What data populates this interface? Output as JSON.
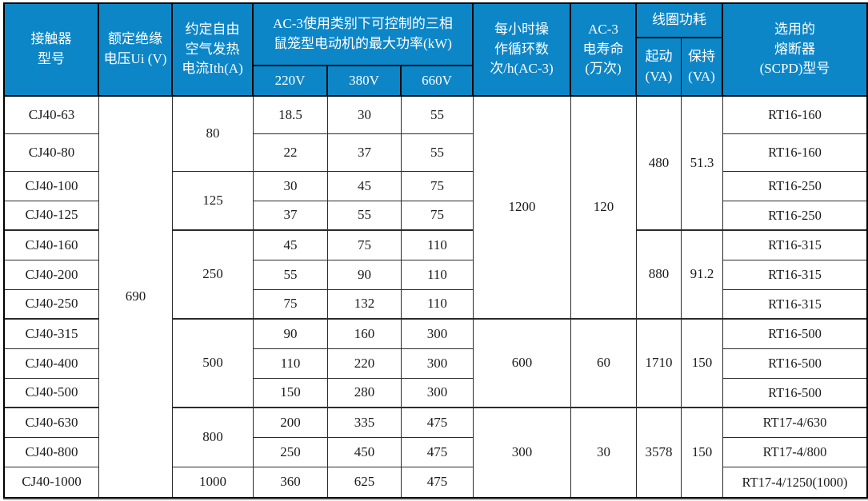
{
  "header": {
    "model": "接触器\n型号",
    "rated_insulation_voltage": "额定绝缘\n电压Ui (V)",
    "thermal_current": "约定自由\n空气发热\n电流Ith(A)",
    "max_power_group": "AC-3使用类别下可控制的三相\n鼠笼型电动机的最大功率(kW)",
    "voltage_220": "220V",
    "voltage_380": "380V",
    "voltage_660": "660V",
    "operating_cycles": "每小时操\n作循环数\n次/h(AC-3)",
    "electrical_life": "AC-3\n电寿命\n(万次)",
    "coil_power_group": "线圈功耗",
    "coil_start": "起动\n(VA)",
    "coil_hold": "保持\n(VA)",
    "fuse": "选用的\n熔断器\n(SCPD)型号"
  },
  "spans": {
    "ui": "690",
    "ith": [
      "80",
      "125",
      "250",
      "500",
      "800",
      "1000"
    ],
    "cycles": [
      "1200",
      "600",
      "300"
    ],
    "life": [
      "120",
      "60",
      "30"
    ],
    "start_va": [
      "480",
      "880",
      "1710",
      "3578"
    ],
    "hold_va": [
      "51.3",
      "91.2",
      "150",
      "150"
    ]
  },
  "rows": [
    {
      "model": "CJ40-63",
      "kw220": "18.5",
      "kw380": "30",
      "kw660": "55",
      "fuse": "RT16-160"
    },
    {
      "model": "CJ40-80",
      "kw220": "22",
      "kw380": "37",
      "kw660": "55",
      "fuse": "RT16-160"
    },
    {
      "model": "CJ40-100",
      "kw220": "30",
      "kw380": "45",
      "kw660": "75",
      "fuse": "RT16-250"
    },
    {
      "model": "CJ40-125",
      "kw220": "37",
      "kw380": "55",
      "kw660": "75",
      "fuse": "RT16-250"
    },
    {
      "model": "CJ40-160",
      "kw220": "45",
      "kw380": "75",
      "kw660": "110",
      "fuse": "RT16-315"
    },
    {
      "model": "CJ40-200",
      "kw220": "55",
      "kw380": "90",
      "kw660": "110",
      "fuse": "RT16-315"
    },
    {
      "model": "CJ40-250",
      "kw220": "75",
      "kw380": "132",
      "kw660": "110",
      "fuse": "RT16-315"
    },
    {
      "model": "CJ40-315",
      "kw220": "90",
      "kw380": "160",
      "kw660": "300",
      "fuse": "RT16-500"
    },
    {
      "model": "CJ40-400",
      "kw220": "110",
      "kw380": "220",
      "kw660": "300",
      "fuse": "RT16-500"
    },
    {
      "model": "CJ40-500",
      "kw220": "150",
      "kw380": "280",
      "kw660": "300",
      "fuse": "RT16-500"
    },
    {
      "model": "CJ40-630",
      "kw220": "200",
      "kw380": "335",
      "kw660": "475",
      "fuse": "RT17-4/630"
    },
    {
      "model": "CJ40-800",
      "kw220": "250",
      "kw380": "450",
      "kw660": "475",
      "fuse": "RT17-4/800"
    },
    {
      "model": "CJ40-1000",
      "kw220": "360",
      "kw380": "625",
      "kw660": "475",
      "fuse": "RT17-4/1250(1000)"
    }
  ],
  "colors": {
    "header_bg": "#0d86c7",
    "header_text": "#ffffff",
    "body_text": "#1b1b1b",
    "grid_line": "#2b2b2b"
  }
}
